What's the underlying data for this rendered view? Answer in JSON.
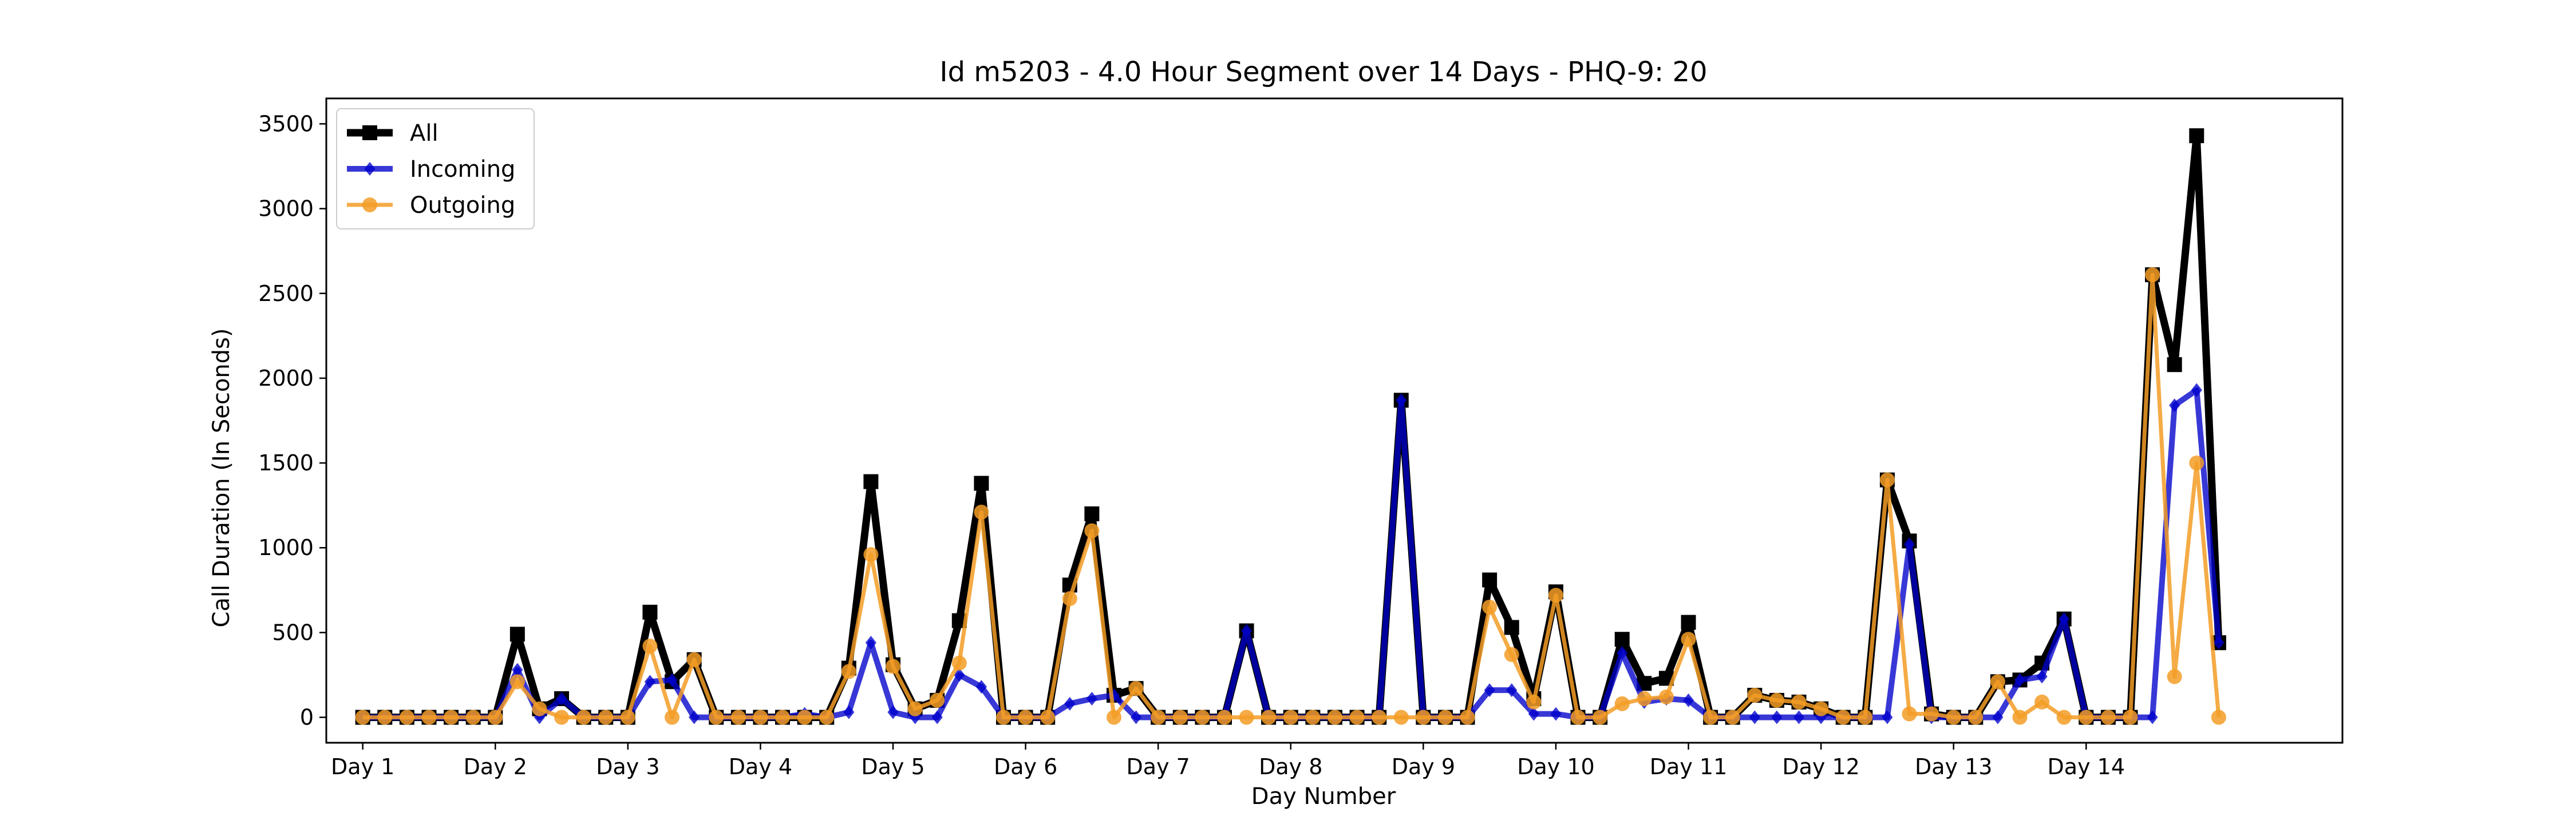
{
  "chart_data": {
    "type": "line",
    "title": "Id m5203 - 4.0 Hour Segment over 14 Days - PHQ-9: 20",
    "xlabel": "Day Number",
    "ylabel": "Call Duration (In Seconds)",
    "ylim": [
      -150,
      3650
    ],
    "yticks": [
      0,
      500,
      1000,
      1500,
      2000,
      2500,
      3000,
      3500
    ],
    "xlim": [
      -1.65,
      89.6
    ],
    "xticks": [
      0,
      6,
      12,
      18,
      24,
      30,
      36,
      42,
      48,
      54,
      60,
      66,
      72,
      78
    ],
    "xticklabels": [
      "Day 1",
      "Day 2",
      "Day 3",
      "Day 4",
      "Day 5",
      "Day 6",
      "Day 7",
      "Day 8",
      "Day 9",
      "Day 10",
      "Day 11",
      "Day 12",
      "Day 13",
      "Day 14"
    ],
    "grid": false,
    "legend": "top-left",
    "series": [
      {
        "name": "All",
        "color": "#000000",
        "marker": "square",
        "values": [
          0,
          0,
          0,
          0,
          0,
          0,
          0,
          490,
          50,
          110,
          0,
          0,
          0,
          620,
          210,
          340,
          0,
          0,
          0,
          0,
          0,
          0,
          290,
          1390,
          310,
          50,
          100,
          570,
          1380,
          0,
          0,
          0,
          780,
          1200,
          130,
          170,
          0,
          0,
          0,
          0,
          510,
          0,
          0,
          0,
          0,
          0,
          0,
          1870,
          0,
          0,
          0,
          810,
          530,
          110,
          740,
          0,
          0,
          460,
          200,
          230,
          560,
          0,
          0,
          130,
          100,
          90,
          50,
          0,
          0,
          1400,
          1040,
          20,
          0,
          0,
          210,
          220,
          320,
          580,
          0,
          0,
          0,
          2610,
          2080,
          3430,
          440
        ]
      },
      {
        "name": "Incoming",
        "color": "#0000cc",
        "marker": "diamond",
        "values": [
          0,
          0,
          0,
          0,
          0,
          0,
          0,
          280,
          0,
          110,
          0,
          0,
          0,
          210,
          220,
          0,
          0,
          0,
          0,
          0,
          20,
          0,
          30,
          440,
          30,
          0,
          0,
          250,
          180,
          0,
          0,
          0,
          80,
          110,
          130,
          0,
          0,
          0,
          0,
          0,
          510,
          0,
          0,
          0,
          0,
          0,
          0,
          1870,
          0,
          0,
          0,
          160,
          160,
          20,
          20,
          0,
          0,
          380,
          90,
          110,
          100,
          0,
          0,
          0,
          0,
          0,
          0,
          0,
          0,
          0,
          1020,
          0,
          0,
          0,
          0,
          220,
          240,
          580,
          0,
          0,
          0,
          0,
          1840,
          1930,
          440
        ]
      },
      {
        "name": "Outgoing",
        "color": "#f39c26",
        "marker": "circle",
        "values": [
          0,
          0,
          0,
          0,
          0,
          0,
          0,
          210,
          50,
          0,
          0,
          0,
          0,
          420,
          0,
          340,
          0,
          0,
          0,
          0,
          0,
          0,
          270,
          960,
          300,
          50,
          100,
          320,
          1210,
          0,
          0,
          0,
          700,
          1100,
          0,
          170,
          0,
          0,
          0,
          0,
          0,
          0,
          0,
          0,
          0,
          0,
          0,
          0,
          0,
          0,
          0,
          650,
          370,
          90,
          720,
          0,
          0,
          80,
          110,
          120,
          460,
          0,
          0,
          130,
          100,
          90,
          50,
          0,
          0,
          1400,
          20,
          20,
          0,
          0,
          210,
          0,
          90,
          0,
          0,
          0,
          0,
          2610,
          240,
          1500,
          0
        ]
      }
    ]
  }
}
